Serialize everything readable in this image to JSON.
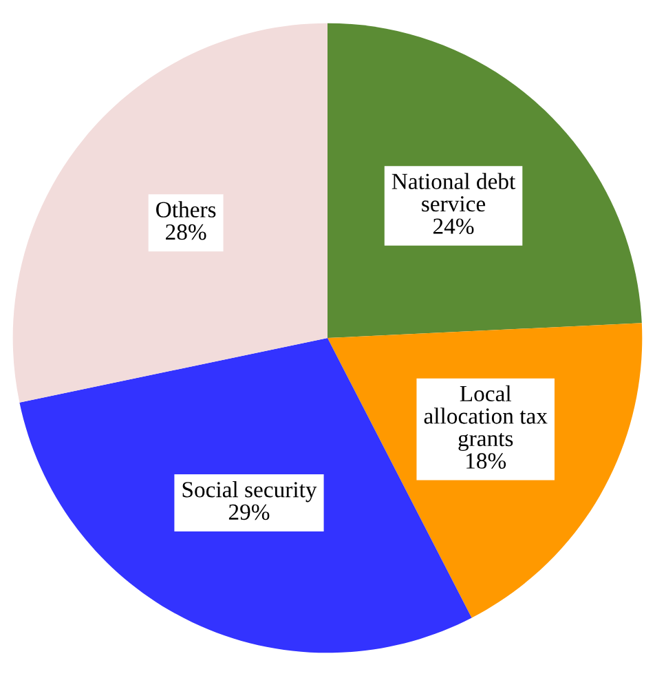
{
  "chart_data": {
    "type": "pie",
    "categories": [
      "National debt\nservice",
      "Local\nallocation tax\ngrants",
      "Social security",
      "Others"
    ],
    "values": [
      24,
      18,
      29,
      28
    ],
    "value_labels": [
      "24%",
      "18%",
      "29%",
      "28%"
    ],
    "colors": [
      "#5b8c34",
      "#ff9900",
      "#3333ff",
      "#f2dcdb"
    ]
  }
}
